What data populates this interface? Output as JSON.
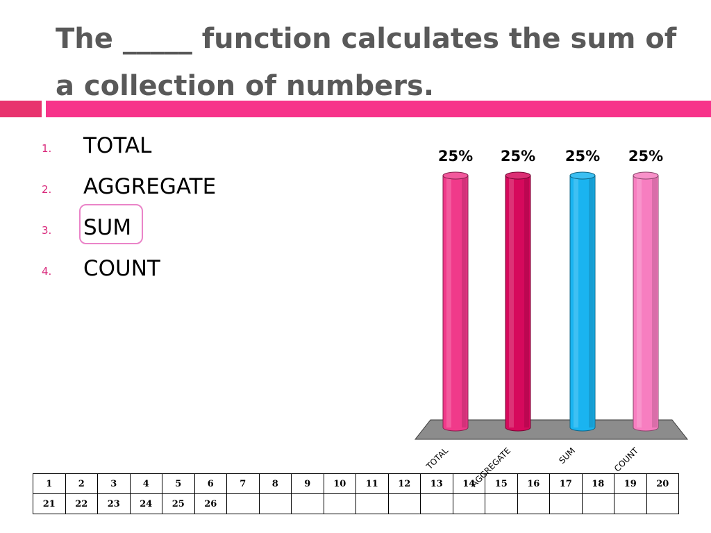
{
  "title": "The _____ function calculates the sum of a collection of numbers.",
  "options": [
    {
      "number": "1.",
      "text": "TOTAL"
    },
    {
      "number": "2.",
      "text": "AGGREGATE"
    },
    {
      "number": "3.",
      "text": "SUM"
    },
    {
      "number": "4.",
      "text": "COUNT"
    }
  ],
  "highlighted_option": "SUM",
  "colors": {
    "accent": "#f7338a",
    "numbering": "#d9287b",
    "title": "#595959",
    "highlight_border": "#ea84c8"
  },
  "chart_data": {
    "type": "bar",
    "categories": [
      "TOTAL",
      "AGGREGATE",
      "SUM",
      "COUNT"
    ],
    "values": [
      25,
      25,
      25,
      25
    ],
    "labels": [
      "25%",
      "25%",
      "25%",
      "25%"
    ],
    "colors": [
      "#f03a8a",
      "#d6095c",
      "#1ab4f0",
      "#f77ec0"
    ],
    "ylim": [
      0,
      25
    ],
    "grid": false,
    "legend": "none",
    "style": "3d-cylinder"
  },
  "answer_grid": {
    "rows": [
      [
        "1",
        "2",
        "3",
        "4",
        "5",
        "6",
        "7",
        "8",
        "9",
        "10",
        "11",
        "12",
        "13",
        "14",
        "15",
        "16",
        "17",
        "18",
        "19",
        "20"
      ],
      [
        "21",
        "22",
        "23",
        "24",
        "25",
        "26",
        "",
        "",
        "",
        "",
        "",
        "",
        "",
        "",
        "",
        "",
        "",
        "",
        "",
        ""
      ]
    ]
  }
}
